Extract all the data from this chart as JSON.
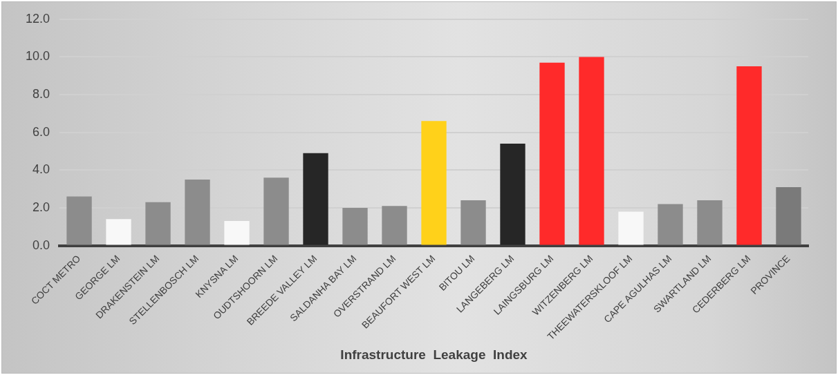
{
  "chart_data": {
    "type": "bar",
    "xlabel": "Infrastructure  Leakage  Index",
    "categories": [
      "COCT METRO",
      "GEORGE LM",
      "DRAKENSTEIN LM",
      "STELLENBOSCH LM",
      "KNYSNA LM",
      "OUDTSHOORN LM",
      "BREEDE VALLEY LM",
      "SALDANHA BAY LM",
      "OVERSTRAND LM",
      "BEAUFORT WEST LM",
      "BITOU LM",
      "LANGEBERG LM",
      "LAINGSBURG LM",
      "WITZENBERG LM",
      "THEEWATERSKLOOF LM",
      "CAPE AGULHAS LM",
      "SWARTLAND LM",
      "CEDERBERG LM",
      "PROVINCE"
    ],
    "values": [
      2.6,
      1.4,
      2.3,
      3.5,
      1.3,
      3.6,
      4.9,
      2.0,
      2.1,
      6.6,
      2.4,
      5.4,
      9.7,
      10.0,
      1.8,
      2.2,
      2.4,
      9.5,
      3.1
    ],
    "colors": [
      "#8c8c8c",
      "#f8f8f8",
      "#8c8c8c",
      "#8c8c8c",
      "#f8f8f8",
      "#8c8c8c",
      "#262626",
      "#8c8c8c",
      "#8c8c8c",
      "#ffd11a",
      "#8c8c8c",
      "#262626",
      "#ff2a2a",
      "#ff2a2a",
      "#f8f8f8",
      "#8c8c8c",
      "#8c8c8c",
      "#ff2a2a",
      "#7a7a7a"
    ],
    "ylim": [
      0,
      12
    ],
    "yticks": [
      {
        "value": 0,
        "label": "0.0"
      },
      {
        "value": 2,
        "label": "2.0"
      },
      {
        "value": 4,
        "label": "4.0"
      },
      {
        "value": 6,
        "label": "6.0"
      },
      {
        "value": 8,
        "label": "8.0"
      },
      {
        "value": 10,
        "label": "10.0"
      },
      {
        "value": 12,
        "label": "12.0"
      }
    ],
    "grid": "y",
    "legend": false
  }
}
